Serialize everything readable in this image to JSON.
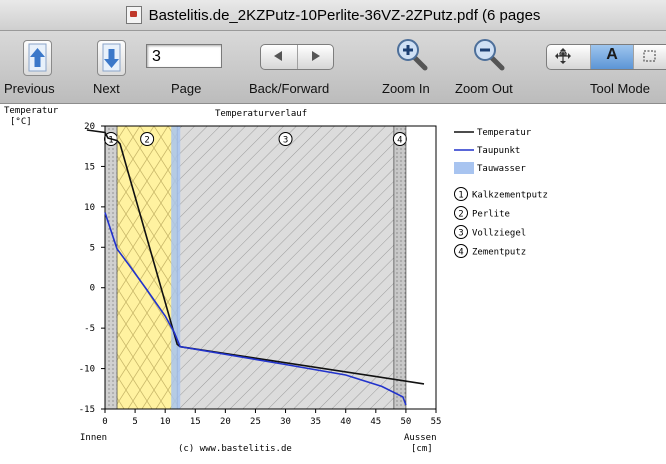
{
  "window": {
    "title": "Bastelitis.de_2KZPutz-10Perlite-36VZ-2ZPutz.pdf (6 pages"
  },
  "toolbar": {
    "previous_label": "Previous",
    "next_label": "Next",
    "page_label": "Page",
    "page_value": "3",
    "backforward_label": "Back/Forward",
    "zoomin_label": "Zoom In",
    "zoomout_label": "Zoom Out",
    "toolmode_label": "Tool Mode",
    "tool_text_letter": "A",
    "icons": [
      "arrow-up-icon",
      "arrow-down-icon",
      "back-arrow-icon",
      "forward-arrow-icon",
      "zoom-in-icon",
      "zoom-out-icon",
      "move-icon",
      "text-select-icon",
      "marquee-select-icon"
    ],
    "active_tool": "text-select"
  },
  "chart_data": {
    "type": "line",
    "title": "Temperaturverlauf",
    "ylabel": "Temperatur",
    "yunit": "[°C]",
    "xlabel_left": "Innen",
    "xlabel_right": "Aussen",
    "xunit": "[cm]",
    "credit": "(c) www.bastelitis.de",
    "xlim": [
      0,
      55
    ],
    "ylim": [
      -15,
      20
    ],
    "xticks": [
      0,
      5,
      10,
      15,
      20,
      25,
      30,
      35,
      40,
      45,
      50,
      55
    ],
    "yticks": [
      -15,
      -10,
      -5,
      0,
      5,
      10,
      15,
      20
    ],
    "layers": [
      {
        "id": "1",
        "name": "Kalkzementputz",
        "x_from": 0,
        "x_to": 2,
        "color": "#d0d0d0"
      },
      {
        "id": "2",
        "name": "Perlite",
        "x_from": 2,
        "x_to": 12,
        "color": "#fff2a0"
      },
      {
        "id": "3",
        "name": "Vollziegel",
        "x_from": 12,
        "x_to": 48,
        "color": "#dcdcdc"
      },
      {
        "id": "4",
        "name": "Zementputz",
        "x_from": 48,
        "x_to": 50,
        "color": "#c8c8c8"
      }
    ],
    "tauwasser_zone": {
      "x_from": 11,
      "x_to": 12.5,
      "color": "#a8c4f0"
    },
    "series": [
      {
        "name": "Temperatur",
        "color": "#111111",
        "x": [
          -3,
          0,
          0.5,
          1,
          2,
          2.5,
          12,
          12.5,
          53
        ],
        "y": [
          19.5,
          19.2,
          18.5,
          18.4,
          18.2,
          17.8,
          -7.0,
          -7.3,
          -11.9
        ]
      },
      {
        "name": "Taupunkt",
        "color": "#2233cc",
        "x": [
          0,
          2,
          4,
          7,
          10,
          11.5,
          12.5,
          30,
          40,
          46,
          49.5,
          50
        ],
        "y": [
          9.3,
          4.8,
          2.8,
          -0.3,
          -3.5,
          -5.5,
          -7.3,
          -9.5,
          -10.8,
          -12.2,
          -13.5,
          -14.5
        ]
      }
    ],
    "legend": {
      "placement": "right",
      "tauwasser_label": "Tauwasser",
      "tauwasser_color": "#a8c4f0"
    }
  }
}
